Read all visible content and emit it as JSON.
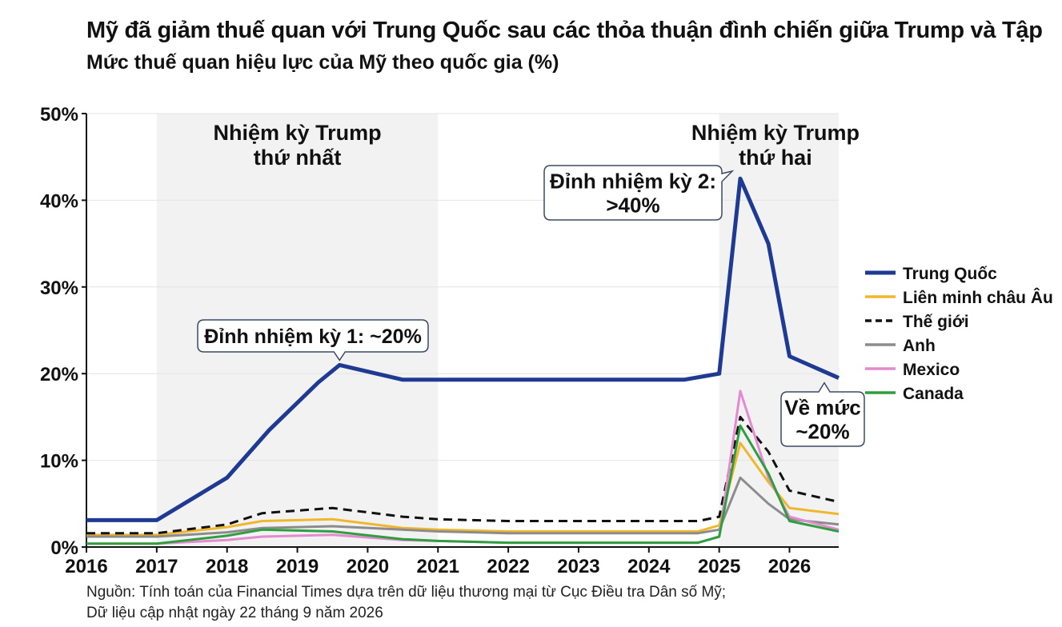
{
  "title": "Mỹ đã giảm thuế quan với Trung Quốc sau các thỏa thuận đình chiến giữa Trump và Tập",
  "subtitle": "Mức thuế quan hiệu lực của Mỹ theo quốc gia (%)",
  "source": {
    "line1": "Nguồn: Tính toán của Financial Times dựa trên dữ liệu thương mại từ Cục Điều tra Dân số Mỹ;",
    "line2": "Dữ liệu cập nhật ngày 22 tháng 9 năm 2026"
  },
  "chart_data": {
    "type": "line",
    "title": "Mỹ đã giảm thuế quan với Trung Quốc sau các thỏa thuận đình chiến giữa Trump và Tập",
    "subtitle": "Mức thuế quan hiệu lực của Mỹ theo quốc gia (%)",
    "xlabel": "",
    "ylabel": "",
    "xlim": [
      2016,
      2026.7
    ],
    "ylim": [
      0,
      50
    ],
    "x_ticks": [
      2016,
      2017,
      2018,
      2019,
      2020,
      2021,
      2022,
      2023,
      2024,
      2025,
      2026
    ],
    "y_ticks": [
      {
        "value": 0,
        "label": "0%"
      },
      {
        "value": 10,
        "label": "10%"
      },
      {
        "value": 20,
        "label": "20%"
      },
      {
        "value": 30,
        "label": "30%"
      },
      {
        "value": 40,
        "label": "40%"
      },
      {
        "value": 50,
        "label": "50%"
      }
    ],
    "grid": true,
    "legend_position": "right",
    "shaded_periods": [
      {
        "label_line1": "Nhiệm kỳ Trump",
        "label_line2": "thứ nhất",
        "start": 2017.0,
        "end": 2021.0,
        "color": "#f2f2f2"
      },
      {
        "label_line1": "Nhiệm kỳ Trump",
        "label_line2": "thứ hai",
        "start": 2025.0,
        "end": 2026.7,
        "color": "#f2f2f2"
      }
    ],
    "series": [
      {
        "name": "Trung Quốc",
        "color": "#1f3a93",
        "width": 5,
        "dash": "",
        "x": [
          2016.0,
          2017.0,
          2018.0,
          2018.6,
          2019.3,
          2019.6,
          2020.5,
          2021.0,
          2022.0,
          2023.0,
          2024.0,
          2024.5,
          2025.0,
          2025.3,
          2025.7,
          2026.0,
          2026.7
        ],
        "y": [
          3.1,
          3.1,
          8.0,
          13.5,
          19.0,
          21.0,
          19.3,
          19.3,
          19.3,
          19.3,
          19.3,
          19.3,
          20.0,
          42.5,
          35.0,
          22.0,
          19.5
        ]
      },
      {
        "name": "Liên minh châu Âu",
        "color": "#f0b72c",
        "width": 3,
        "dash": "",
        "x": [
          2016.0,
          2017.0,
          2018.0,
          2018.5,
          2019.5,
          2020.5,
          2021.0,
          2022.0,
          2023.0,
          2024.0,
          2024.7,
          2025.0,
          2025.3,
          2025.7,
          2026.0,
          2026.7
        ],
        "y": [
          1.4,
          1.4,
          2.3,
          3.0,
          3.2,
          2.2,
          2.0,
          1.8,
          1.8,
          1.8,
          1.8,
          2.5,
          12.0,
          7.5,
          4.5,
          3.8
        ]
      },
      {
        "name": "Thế giới",
        "color": "#111111",
        "width": 3,
        "dash": "11,7",
        "x": [
          2016.0,
          2017.0,
          2018.0,
          2018.5,
          2019.5,
          2020.5,
          2021.0,
          2022.0,
          2023.0,
          2024.0,
          2024.7,
          2025.0,
          2025.3,
          2025.7,
          2026.0,
          2026.7
        ],
        "y": [
          1.6,
          1.6,
          2.6,
          3.9,
          4.5,
          3.5,
          3.2,
          3.0,
          3.0,
          3.0,
          3.0,
          3.5,
          15.0,
          11.0,
          6.5,
          5.2
        ]
      },
      {
        "name": "Anh",
        "color": "#8c8c8c",
        "width": 3,
        "dash": "",
        "x": [
          2016.0,
          2017.0,
          2018.0,
          2018.5,
          2019.5,
          2020.5,
          2021.0,
          2022.0,
          2023.0,
          2024.0,
          2024.7,
          2025.0,
          2025.3,
          2025.7,
          2026.0,
          2026.7
        ],
        "y": [
          1.2,
          1.2,
          1.7,
          2.2,
          2.4,
          2.0,
          1.8,
          1.6,
          1.6,
          1.6,
          1.6,
          2.0,
          8.0,
          5.0,
          3.2,
          2.6
        ]
      },
      {
        "name": "Mexico",
        "color": "#e38ad0",
        "width": 3,
        "dash": "",
        "x": [
          2016.0,
          2017.0,
          2018.0,
          2018.5,
          2019.5,
          2020.5,
          2021.0,
          2022.0,
          2023.0,
          2024.0,
          2024.7,
          2025.0,
          2025.3,
          2025.7,
          2026.0,
          2026.7
        ],
        "y": [
          0.4,
          0.4,
          0.8,
          1.2,
          1.4,
          0.8,
          0.7,
          0.5,
          0.5,
          0.5,
          0.5,
          1.2,
          18.0,
          8.0,
          3.5,
          2.0
        ]
      },
      {
        "name": "Canada",
        "color": "#2e9e3e",
        "width": 3,
        "dash": "",
        "x": [
          2016.0,
          2017.0,
          2018.0,
          2018.5,
          2019.5,
          2020.5,
          2021.0,
          2022.0,
          2023.0,
          2024.0,
          2024.7,
          2025.0,
          2025.3,
          2025.7,
          2026.0,
          2026.7
        ],
        "y": [
          0.4,
          0.4,
          1.3,
          2.0,
          1.8,
          0.9,
          0.7,
          0.5,
          0.5,
          0.5,
          0.5,
          1.2,
          14.0,
          8.5,
          3.0,
          1.8
        ]
      }
    ],
    "annotations": [
      {
        "id": "peak1",
        "line1": "Đỉnh nhiệm kỳ 1: ~20%",
        "line2": "",
        "x": 2019.6,
        "y": 21.0
      },
      {
        "id": "peak2",
        "line1": "Đỉnh nhiệm kỳ 2:",
        "line2": ">40%",
        "x": 2025.3,
        "y": 42.5
      },
      {
        "id": "back",
        "line1": "Về mức",
        "line2": "~20%",
        "x": 2026.7,
        "y": 19.5
      }
    ]
  }
}
